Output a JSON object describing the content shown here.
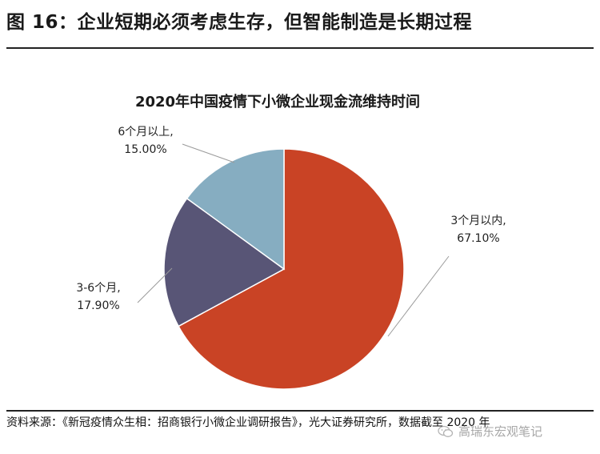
{
  "figure": {
    "title": "图 16：企业短期必须考虑生存，但智能制造是长期过程"
  },
  "chart_data": {
    "type": "pie",
    "title": "2020年中国疫情下小微企业现金流维持时间",
    "slices": [
      {
        "label": "3个月以内,",
        "value": 67.1,
        "value_label": "67.10%",
        "color": "#c94325"
      },
      {
        "label": "3-6个月,",
        "value": 17.9,
        "value_label": "17.90%",
        "color": "#585576"
      },
      {
        "label": "6个月以上,",
        "value": 15.0,
        "value_label": "15.00%",
        "color": "#86adc1"
      }
    ],
    "start_angle_deg": 0,
    "direction": "clockwise",
    "legend": "none"
  },
  "source": {
    "text": "资料来源：《新冠疫情众生相：招商银行小微企业调研报告》，光大证券研究所，数据截至 2020 年"
  },
  "watermark": {
    "text": "高瑞东宏观笔记",
    "icon": "wechat-icon"
  }
}
